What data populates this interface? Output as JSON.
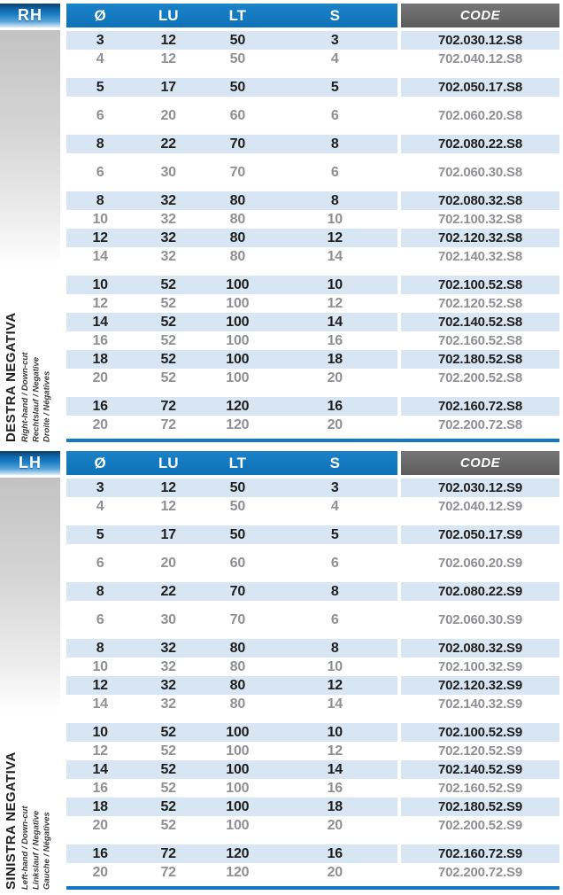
{
  "colors": {
    "header_blue": "#1377bd",
    "code_gray": "#666667",
    "row_highlight": "#d8e6f4",
    "rule_blue": "#1478c0",
    "text_dark": "#1e1e1e",
    "text_gray": "#8f9094",
    "tab_gradient_top": "#0d63a8",
    "tab_gradient_bottom": "#ddecf7",
    "left_panel_gray": "#c3c3c4"
  },
  "columns": {
    "diameter": "Ø",
    "lu": "LU",
    "lt": "LT",
    "s": "S",
    "code": "CODE"
  },
  "sections": [
    {
      "tab": "RH",
      "side_label": {
        "title": "DESTRA NEGATIVA",
        "subtitles": [
          "Right-hand / Down-cut",
          "Rechtslauf / Negative",
          "Droite / Négatives"
        ]
      },
      "groups": [
        [
          {
            "d": "3",
            "lu": "12",
            "lt": "50",
            "s": "3",
            "code": "702.030.12.S8"
          },
          {
            "d": "4",
            "lu": "12",
            "lt": "50",
            "s": "4",
            "code": "702.040.12.S8"
          }
        ],
        [
          {
            "d": "5",
            "lu": "17",
            "lt": "50",
            "s": "5",
            "code": "702.050.17.S8"
          }
        ],
        [
          {
            "d": "6",
            "lu": "20",
            "lt": "60",
            "s": "6",
            "code": "702.060.20.S8"
          }
        ],
        [
          {
            "d": "8",
            "lu": "22",
            "lt": "70",
            "s": "8",
            "code": "702.080.22.S8"
          }
        ],
        [
          {
            "d": "6",
            "lu": "30",
            "lt": "70",
            "s": "6",
            "code": "702.060.30.S8"
          }
        ],
        [
          {
            "d": "8",
            "lu": "32",
            "lt": "80",
            "s": "8",
            "code": "702.080.32.S8"
          },
          {
            "d": "10",
            "lu": "32",
            "lt": "80",
            "s": "10",
            "code": "702.100.32.S8"
          },
          {
            "d": "12",
            "lu": "32",
            "lt": "80",
            "s": "12",
            "code": "702.120.32.S8"
          },
          {
            "d": "14",
            "lu": "32",
            "lt": "80",
            "s": "14",
            "code": "702.140.32.S8"
          }
        ],
        [
          {
            "d": "10",
            "lu": "52",
            "lt": "100",
            "s": "10",
            "code": "702.100.52.S8"
          },
          {
            "d": "12",
            "lu": "52",
            "lt": "100",
            "s": "12",
            "code": "702.120.52.S8"
          },
          {
            "d": "14",
            "lu": "52",
            "lt": "100",
            "s": "14",
            "code": "702.140.52.S8"
          },
          {
            "d": "16",
            "lu": "52",
            "lt": "100",
            "s": "16",
            "code": "702.160.52.S8"
          },
          {
            "d": "18",
            "lu": "52",
            "lt": "100",
            "s": "18",
            "code": "702.180.52.S8"
          },
          {
            "d": "20",
            "lu": "52",
            "lt": "100",
            "s": "20",
            "code": "702.200.52.S8"
          }
        ],
        [
          {
            "d": "16",
            "lu": "72",
            "lt": "120",
            "s": "16",
            "code": "702.160.72.S8"
          },
          {
            "d": "20",
            "lu": "72",
            "lt": "120",
            "s": "20",
            "code": "702.200.72.S8"
          }
        ]
      ]
    },
    {
      "tab": "LH",
      "side_label": {
        "title": "SINISTRA NEGATIVA",
        "subtitles": [
          "Left-hand / Down-cut",
          "Linkslauf / Negative",
          "Gauche / Négatives"
        ]
      },
      "groups": [
        [
          {
            "d": "3",
            "lu": "12",
            "lt": "50",
            "s": "3",
            "code": "702.030.12.S9"
          },
          {
            "d": "4",
            "lu": "12",
            "lt": "50",
            "s": "4",
            "code": "702.040.12.S9"
          }
        ],
        [
          {
            "d": "5",
            "lu": "17",
            "lt": "50",
            "s": "5",
            "code": "702.050.17.S9"
          }
        ],
        [
          {
            "d": "6",
            "lu": "20",
            "lt": "60",
            "s": "6",
            "code": "702.060.20.S9"
          }
        ],
        [
          {
            "d": "8",
            "lu": "22",
            "lt": "70",
            "s": "8",
            "code": "702.080.22.S9"
          }
        ],
        [
          {
            "d": "6",
            "lu": "30",
            "lt": "70",
            "s": "6",
            "code": "702.060.30.S9"
          }
        ],
        [
          {
            "d": "8",
            "lu": "32",
            "lt": "80",
            "s": "8",
            "code": "702.080.32.S9"
          },
          {
            "d": "10",
            "lu": "32",
            "lt": "80",
            "s": "10",
            "code": "702.100.32.S9"
          },
          {
            "d": "12",
            "lu": "32",
            "lt": "80",
            "s": "12",
            "code": "702.120.32.S9"
          },
          {
            "d": "14",
            "lu": "32",
            "lt": "80",
            "s": "14",
            "code": "702.140.32.S9"
          }
        ],
        [
          {
            "d": "10",
            "lu": "52",
            "lt": "100",
            "s": "10",
            "code": "702.100.52.S9"
          },
          {
            "d": "12",
            "lu": "52",
            "lt": "100",
            "s": "12",
            "code": "702.120.52.S9"
          },
          {
            "d": "14",
            "lu": "52",
            "lt": "100",
            "s": "14",
            "code": "702.140.52.S9"
          },
          {
            "d": "16",
            "lu": "52",
            "lt": "100",
            "s": "16",
            "code": "702.160.52.S9"
          },
          {
            "d": "18",
            "lu": "52",
            "lt": "100",
            "s": "18",
            "code": "702.180.52.S9"
          },
          {
            "d": "20",
            "lu": "52",
            "lt": "100",
            "s": "20",
            "code": "702.200.52.S9"
          }
        ],
        [
          {
            "d": "16",
            "lu": "72",
            "lt": "120",
            "s": "16",
            "code": "702.160.72.S9"
          },
          {
            "d": "20",
            "lu": "72",
            "lt": "120",
            "s": "20",
            "code": "702.200.72.S9"
          }
        ]
      ]
    }
  ]
}
